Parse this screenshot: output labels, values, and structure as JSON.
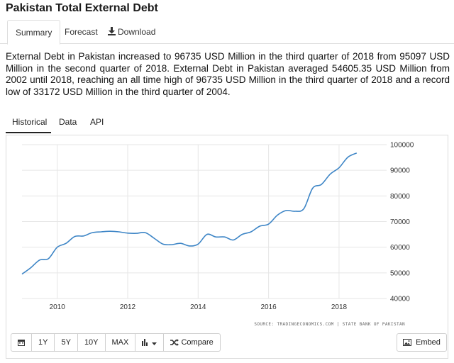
{
  "page": {
    "title": "Pakistan Total External Debt"
  },
  "tabs": {
    "summary": "Summary",
    "forecast": "Forecast",
    "download": "Download"
  },
  "description": "External Debt in Pakistan increased to 96735 USD Million in the third quarter of 2018 from 95097 USD Million in the second quarter of 2018. External Debt in Pakistan averaged 54605.35 USD Million from 2002 until 2018, reaching an all time high of 96735 USD Million in the third quarter of 2018 and a record low of 33172 USD Million in the third quarter of 2004.",
  "subtabs": {
    "historical": "Historical",
    "data": "Data",
    "api": "API"
  },
  "toolbar": {
    "one_year": "1Y",
    "five_year": "5Y",
    "ten_year": "10Y",
    "max": "MAX",
    "compare": "Compare",
    "embed": "Embed"
  },
  "colors": {
    "line": "#3d85c6",
    "grid": "#e6e6e6"
  },
  "icons": [
    "download-icon",
    "calendar-icon",
    "bar-chart-icon",
    "caret-down-icon",
    "shuffle-icon",
    "image-icon"
  ],
  "chart_data": {
    "type": "line",
    "title": "",
    "xlabel": "",
    "ylabel": "",
    "x_ticks": [
      "2010",
      "2012",
      "2014",
      "2016",
      "2018"
    ],
    "y_ticks": [
      "100000",
      "90000",
      "80000",
      "70000",
      "60000",
      "50000",
      "40000"
    ],
    "xlim": [
      2009.0,
      2019.35
    ],
    "ylim": [
      40000,
      100000
    ],
    "grid": true,
    "y_axis_side": "right",
    "source": "SOURCE: TRADINGECONOMICS.COM | STATE BANK OF PAKISTAN",
    "series": [
      {
        "name": "",
        "x": [
          2009.0,
          2009.25,
          2009.5,
          2009.75,
          2010.0,
          2010.25,
          2010.5,
          2010.75,
          2011.0,
          2011.25,
          2011.5,
          2011.75,
          2012.0,
          2012.25,
          2012.5,
          2012.75,
          2013.0,
          2013.25,
          2013.5,
          2013.75,
          2014.0,
          2014.25,
          2014.5,
          2014.75,
          2015.0,
          2015.25,
          2015.5,
          2015.75,
          2016.0,
          2016.25,
          2016.5,
          2016.75,
          2017.0,
          2017.25,
          2017.5,
          2017.75,
          2018.0,
          2018.25,
          2018.5
        ],
        "values": [
          49500,
          52000,
          55000,
          55500,
          60000,
          61500,
          64200,
          64400,
          65700,
          66000,
          66200,
          66000,
          65500,
          65400,
          65700,
          63500,
          61200,
          61000,
          61500,
          60500,
          61200,
          65000,
          64000,
          64000,
          62800,
          65000,
          66000,
          68200,
          69000,
          72500,
          74300,
          74000,
          75000,
          83000,
          84500,
          88500,
          91000,
          95097,
          96735
        ]
      }
    ]
  }
}
